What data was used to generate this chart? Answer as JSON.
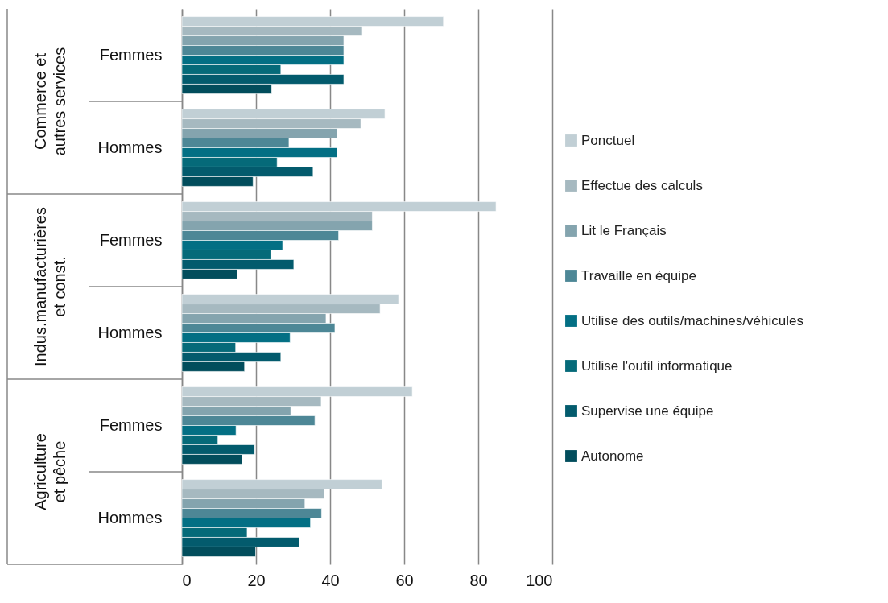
{
  "chart_data": {
    "type": "bar",
    "orientation": "horizontal",
    "categories": [
      "Femmes",
      "Hommes",
      "Femmes",
      "Hommes",
      "Femmes",
      "Hommes"
    ],
    "annotations": [
      "Commerce et autres services",
      "Indus.manufacturières et const.",
      "Agriculture et pêche"
    ],
    "series": [
      {
        "name": "Ponctuel",
        "color": "#c1cfd5",
        "values": [
          70.6,
          54.8,
          84.8,
          58.5,
          62.2,
          54.0
        ]
      },
      {
        "name": "Effectue des calculs",
        "color": "#a6b9c0",
        "values": [
          48.7,
          48.3,
          51.4,
          53.5,
          37.6,
          38.4
        ]
      },
      {
        "name": "Lit le Français",
        "color": "#84a4ae",
        "values": [
          43.7,
          41.9,
          51.4,
          38.9,
          29.4,
          33.2
        ]
      },
      {
        "name": "Travaille en équipe",
        "color": "#4d8796",
        "values": [
          43.7,
          28.9,
          42.3,
          41.3,
          35.9,
          37.7
        ]
      },
      {
        "name": "Utilise des outils/machines/véhicules",
        "color": "#036f84",
        "values": [
          43.7,
          41.9,
          27.2,
          29.2,
          14.6,
          34.7
        ]
      },
      {
        "name": "Utilise l'outil informatique",
        "color": "#056a79",
        "values": [
          26.7,
          25.7,
          24.0,
          14.5,
          9.7,
          17.6
        ]
      },
      {
        "name": "Supervise une équipe",
        "color": "#035b6d",
        "values": [
          43.7,
          35.4,
          30.2,
          26.7,
          19.6,
          31.7
        ]
      },
      {
        "name": "Autonome",
        "color": "#024d5c",
        "values": [
          24.2,
          19.2,
          15.0,
          16.9,
          16.2,
          19.9
        ]
      }
    ],
    "xlim": [
      0,
      100
    ],
    "xticks": [
      0,
      20,
      40,
      60,
      80,
      100
    ],
    "grid": "x",
    "legend": "right"
  }
}
